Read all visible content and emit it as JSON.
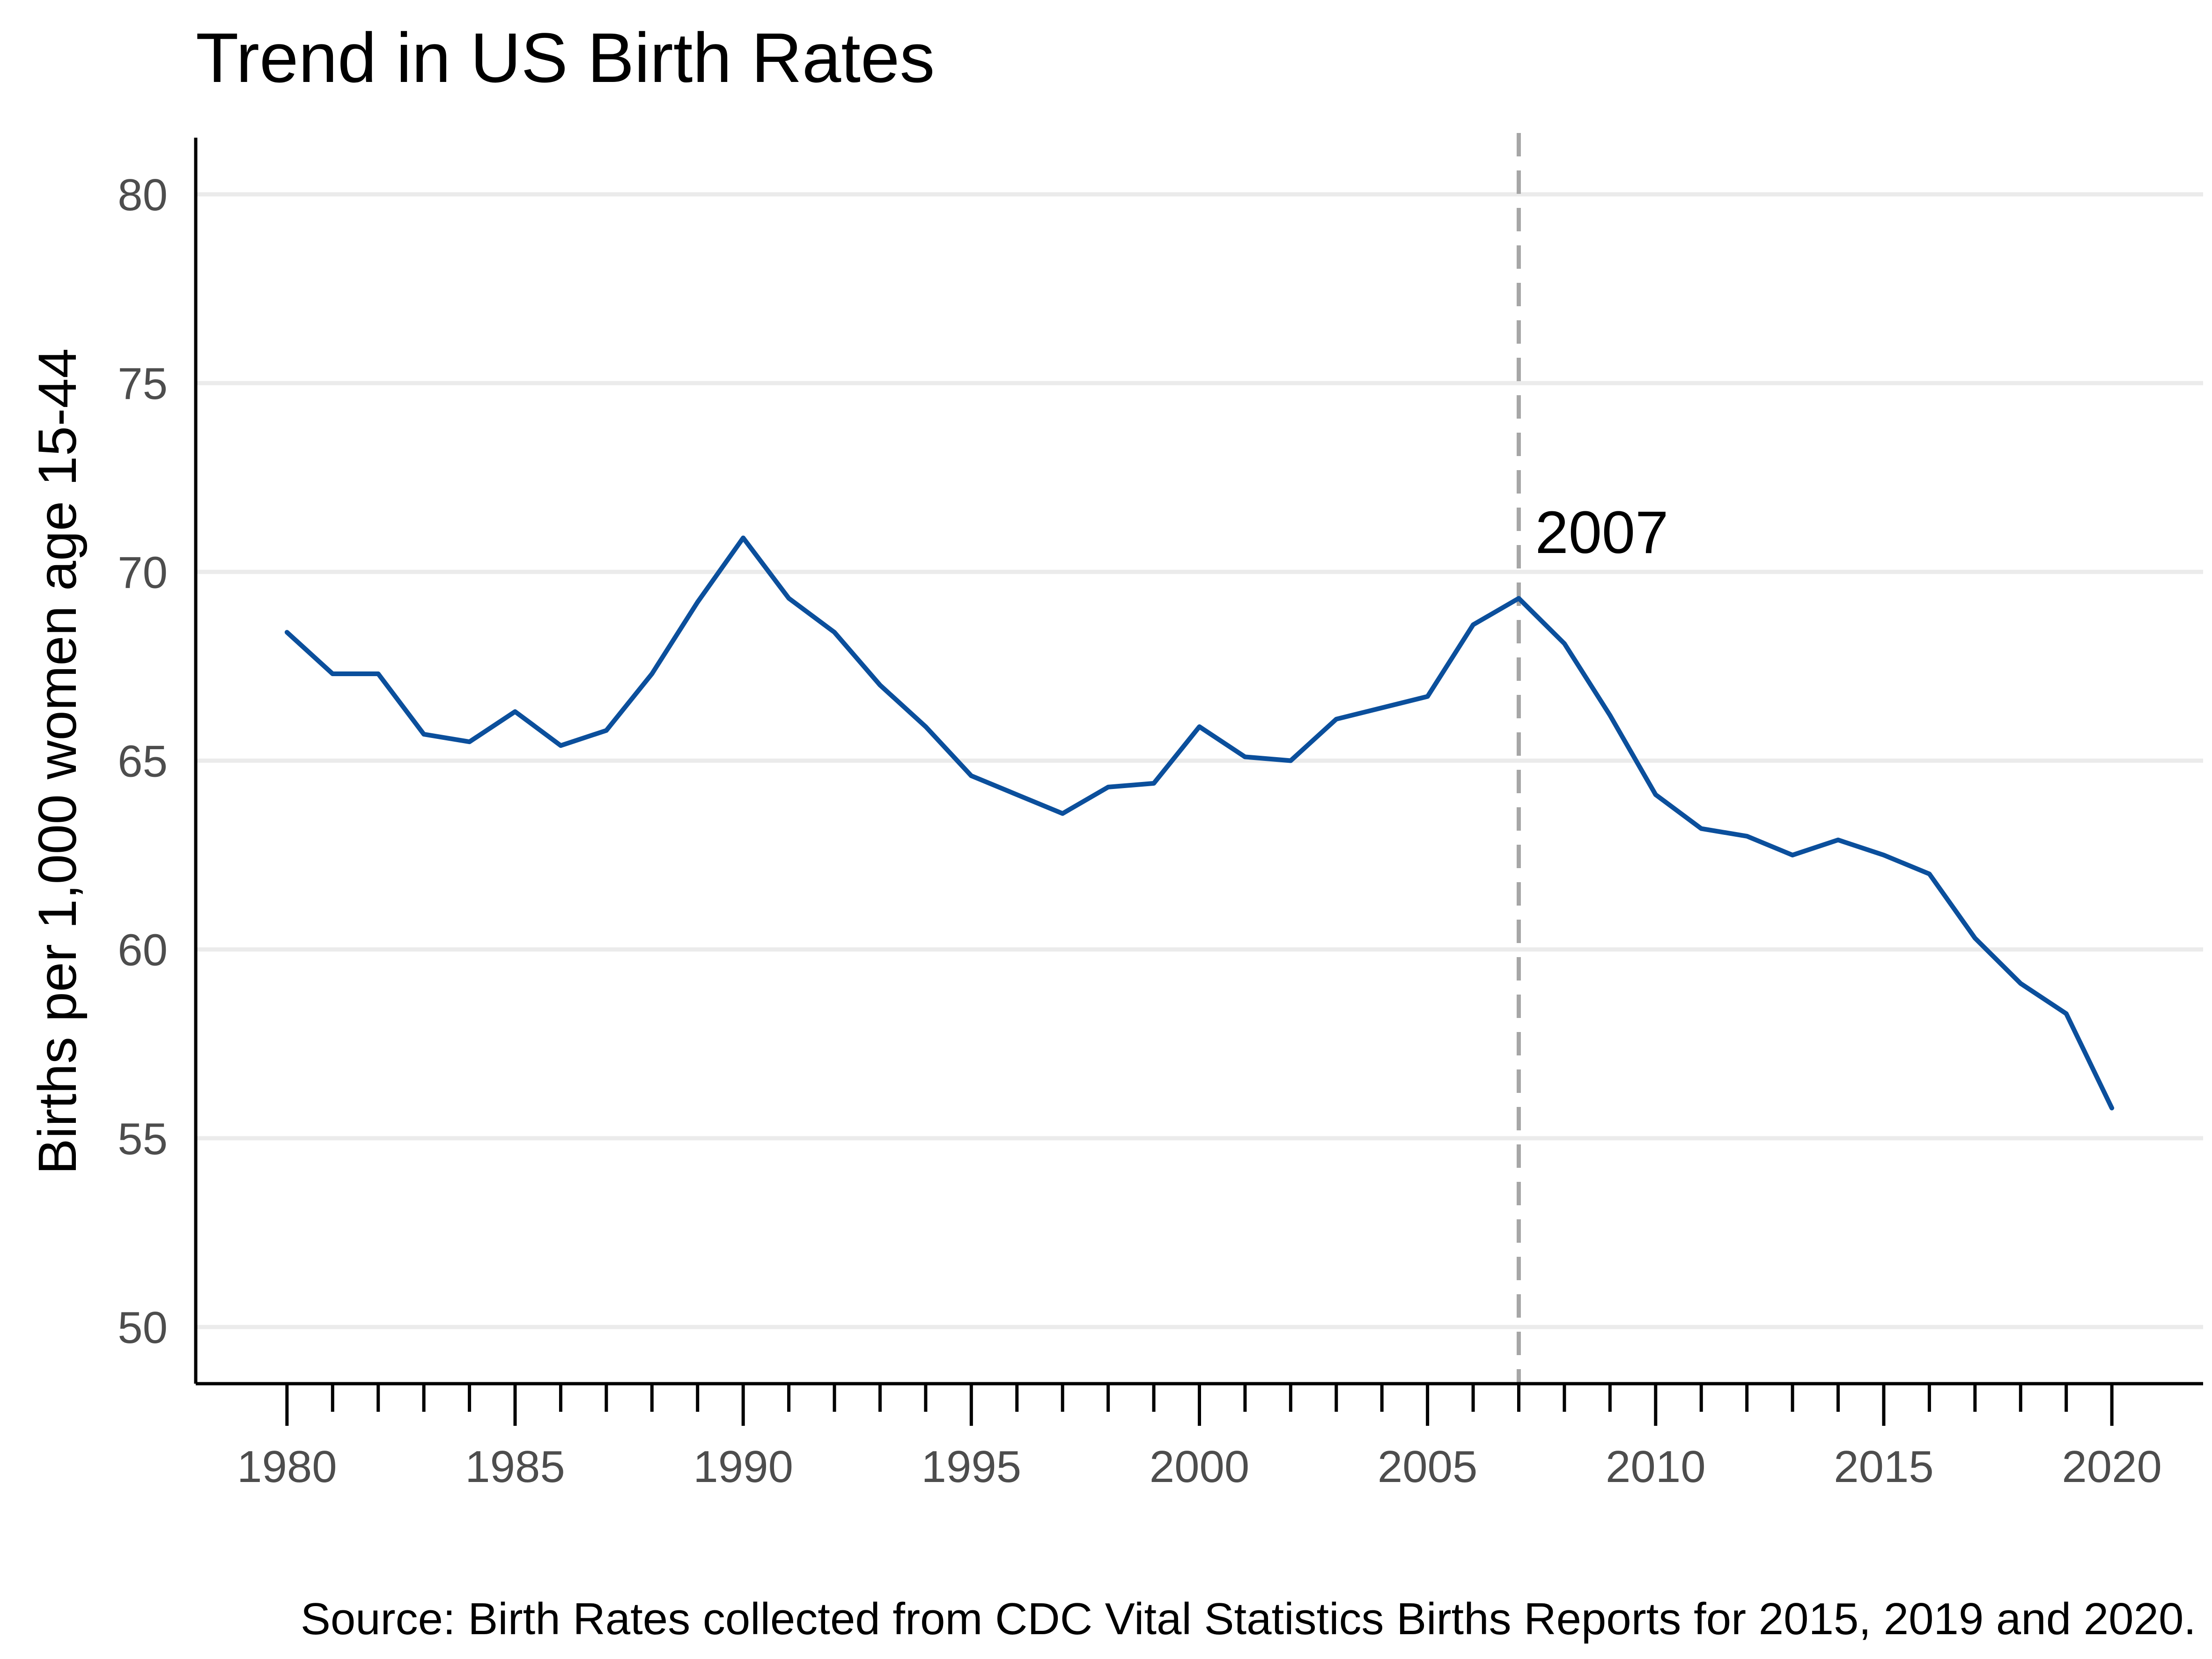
{
  "chart_data": {
    "type": "line",
    "title": "Trend in US Birth Rates",
    "xlabel": "",
    "ylabel": "Births per 1,000 women age 15-44",
    "caption": "Source: Birth Rates collected from CDC Vital Statistics Births Reports for 2015, 2019 and 2020.",
    "xlim": [
      1978,
      2022
    ],
    "ylim": [
      48.5,
      81.5
    ],
    "x_ticks": [
      1980,
      1985,
      1990,
      1995,
      2000,
      2005,
      2010,
      2015,
      2020
    ],
    "x_minor_ticks": [
      1980,
      1981,
      1982,
      1983,
      1984,
      1985,
      1986,
      1987,
      1988,
      1989,
      1990,
      1991,
      1992,
      1993,
      1994,
      1995,
      1996,
      1997,
      1998,
      1999,
      2000,
      2001,
      2002,
      2003,
      2004,
      2005,
      2006,
      2007,
      2008,
      2009,
      2010,
      2011,
      2012,
      2013,
      2014,
      2015,
      2016,
      2017,
      2018,
      2019,
      2020
    ],
    "x_tick_labels": [
      "1980",
      "1985",
      "1990",
      "1995",
      "2000",
      "2005",
      "2010",
      "2015",
      "2020"
    ],
    "y_ticks": [
      50,
      55,
      60,
      65,
      70,
      75,
      80
    ],
    "y_tick_labels": [
      "50",
      "55",
      "60",
      "65",
      "70",
      "75",
      "80"
    ],
    "grid": "horizontal major",
    "legend": "none",
    "line_color": "#0b4f9c",
    "series": [
      {
        "x": [
          1980,
          1981,
          1982,
          1983,
          1984,
          1985,
          1986,
          1987,
          1988,
          1989,
          1990,
          1991,
          1992,
          1993,
          1994,
          1995,
          1996,
          1997,
          1998,
          1999,
          2000,
          2001,
          2002,
          2003,
          2004,
          2005,
          2006,
          2007,
          2008,
          2009,
          2010,
          2011,
          2012,
          2013,
          2014,
          2015,
          2016,
          2017,
          2018,
          2019,
          2020
        ],
        "values": [
          68.4,
          67.3,
          67.3,
          65.7,
          65.5,
          66.3,
          65.4,
          65.8,
          67.3,
          69.2,
          70.9,
          69.3,
          68.4,
          67.0,
          65.9,
          64.6,
          64.1,
          63.6,
          64.3,
          64.4,
          65.9,
          65.1,
          65.0,
          66.1,
          66.4,
          66.7,
          68.6,
          69.3,
          68.1,
          66.2,
          64.1,
          63.2,
          63.0,
          62.5,
          62.9,
          62.5,
          62.0,
          60.3,
          59.1,
          58.3,
          55.8
        ]
      }
    ],
    "annotations": [
      {
        "type": "vline",
        "x": 2007,
        "label": "2007",
        "color": "#a6a6a6",
        "style": "dashed"
      }
    ]
  }
}
